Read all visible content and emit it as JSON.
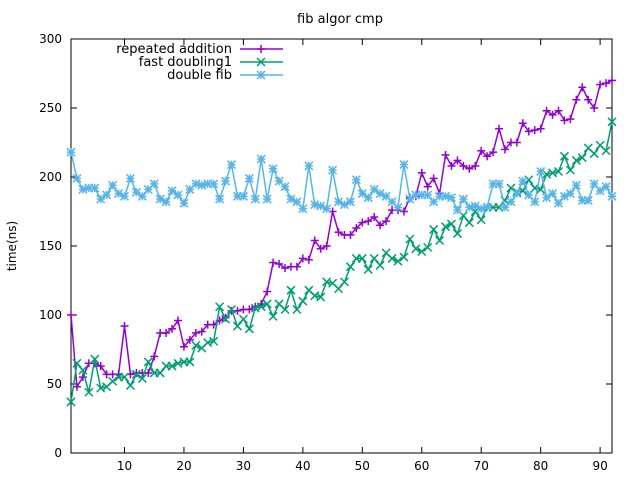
{
  "chart_data": {
    "type": "line",
    "title": "fib algor cmp",
    "xlabel": "",
    "ylabel": "time(ns)",
    "xlim": [
      1,
      92
    ],
    "ylim": [
      0,
      300
    ],
    "x_ticks": [
      10,
      20,
      30,
      40,
      50,
      60,
      70,
      80,
      90
    ],
    "y_ticks": [
      0,
      50,
      100,
      150,
      200,
      250,
      300
    ],
    "legend_position": "top-left",
    "grid": false,
    "x": [
      1,
      2,
      3,
      4,
      5,
      6,
      7,
      8,
      9,
      10,
      11,
      12,
      13,
      14,
      15,
      16,
      17,
      18,
      19,
      20,
      21,
      22,
      23,
      24,
      25,
      26,
      27,
      28,
      29,
      30,
      31,
      32,
      33,
      34,
      35,
      36,
      37,
      38,
      39,
      40,
      41,
      42,
      43,
      44,
      45,
      46,
      47,
      48,
      49,
      50,
      51,
      52,
      53,
      54,
      55,
      56,
      57,
      58,
      59,
      60,
      61,
      62,
      63,
      64,
      65,
      66,
      67,
      68,
      69,
      70,
      71,
      72,
      73,
      74,
      75,
      76,
      77,
      78,
      79,
      80,
      81,
      82,
      83,
      84,
      85,
      86,
      87,
      88,
      89,
      90,
      91,
      92
    ],
    "series": [
      {
        "name": "repeated addition",
        "color": "#9400d3",
        "marker": "plus",
        "values": [
          100,
          48,
          55,
          65,
          65,
          63,
          57,
          57,
          57,
          92,
          57,
          58,
          58,
          58,
          70,
          87,
          87,
          90,
          96,
          77,
          82,
          87,
          88,
          93,
          93,
          96,
          98,
          103,
          103,
          104,
          104,
          106,
          108,
          117,
          138,
          137,
          134,
          135,
          135,
          141,
          140,
          154,
          148,
          150,
          175,
          160,
          158,
          158,
          163,
          167,
          168,
          171,
          165,
          168,
          176,
          176,
          175,
          185,
          186,
          203,
          193,
          199,
          188,
          216,
          208,
          212,
          208,
          206,
          208,
          219,
          215,
          218,
          235,
          220,
          225,
          225,
          239,
          233,
          234,
          235,
          248,
          245,
          248,
          241,
          242,
          256,
          265,
          256,
          250,
          267,
          268,
          270
        ]
      },
      {
        "name": "fast doubling1",
        "color": "#009e73",
        "marker": "x",
        "values": [
          37,
          65,
          60,
          44,
          68,
          47,
          48,
          52,
          55,
          55,
          49,
          57,
          54,
          66,
          58,
          58,
          63,
          63,
          65,
          66,
          66,
          78,
          76,
          80,
          81,
          106,
          97,
          104,
          92,
          97,
          90,
          105,
          106,
          108,
          99,
          108,
          104,
          118,
          104,
          110,
          118,
          114,
          113,
          124,
          123,
          119,
          124,
          135,
          141,
          141,
          133,
          141,
          136,
          145,
          141,
          139,
          142,
          155,
          148,
          146,
          149,
          162,
          154,
          164,
          166,
          159,
          172,
          167,
          175,
          169,
          178,
          178,
          178,
          183,
          192,
          189,
          190,
          198,
          192,
          191,
          202,
          203,
          204,
          215,
          205,
          212,
          214,
          221,
          217,
          223,
          219,
          240
        ]
      },
      {
        "name": "double fib",
        "color": "#56b4e9",
        "marker": "star",
        "values": [
          218,
          199,
          191,
          192,
          192,
          184,
          187,
          194,
          188,
          186,
          199,
          189,
          186,
          191,
          195,
          184,
          182,
          190,
          187,
          181,
          191,
          195,
          194,
          195,
          195,
          184,
          197,
          209,
          186,
          186,
          199,
          184,
          213,
          184,
          206,
          197,
          193,
          184,
          182,
          177,
          208,
          180,
          179,
          177,
          205,
          182,
          180,
          182,
          198,
          188,
          185,
          191,
          188,
          186,
          182,
          178,
          209,
          184,
          187,
          187,
          187,
          182,
          186,
          186,
          185,
          176,
          184,
          178,
          179,
          177,
          178,
          195,
          195,
          178,
          182,
          188,
          197,
          187,
          182,
          204,
          185,
          188,
          181,
          186,
          188,
          194,
          183,
          183,
          195,
          190,
          193,
          186
        ]
      }
    ]
  }
}
